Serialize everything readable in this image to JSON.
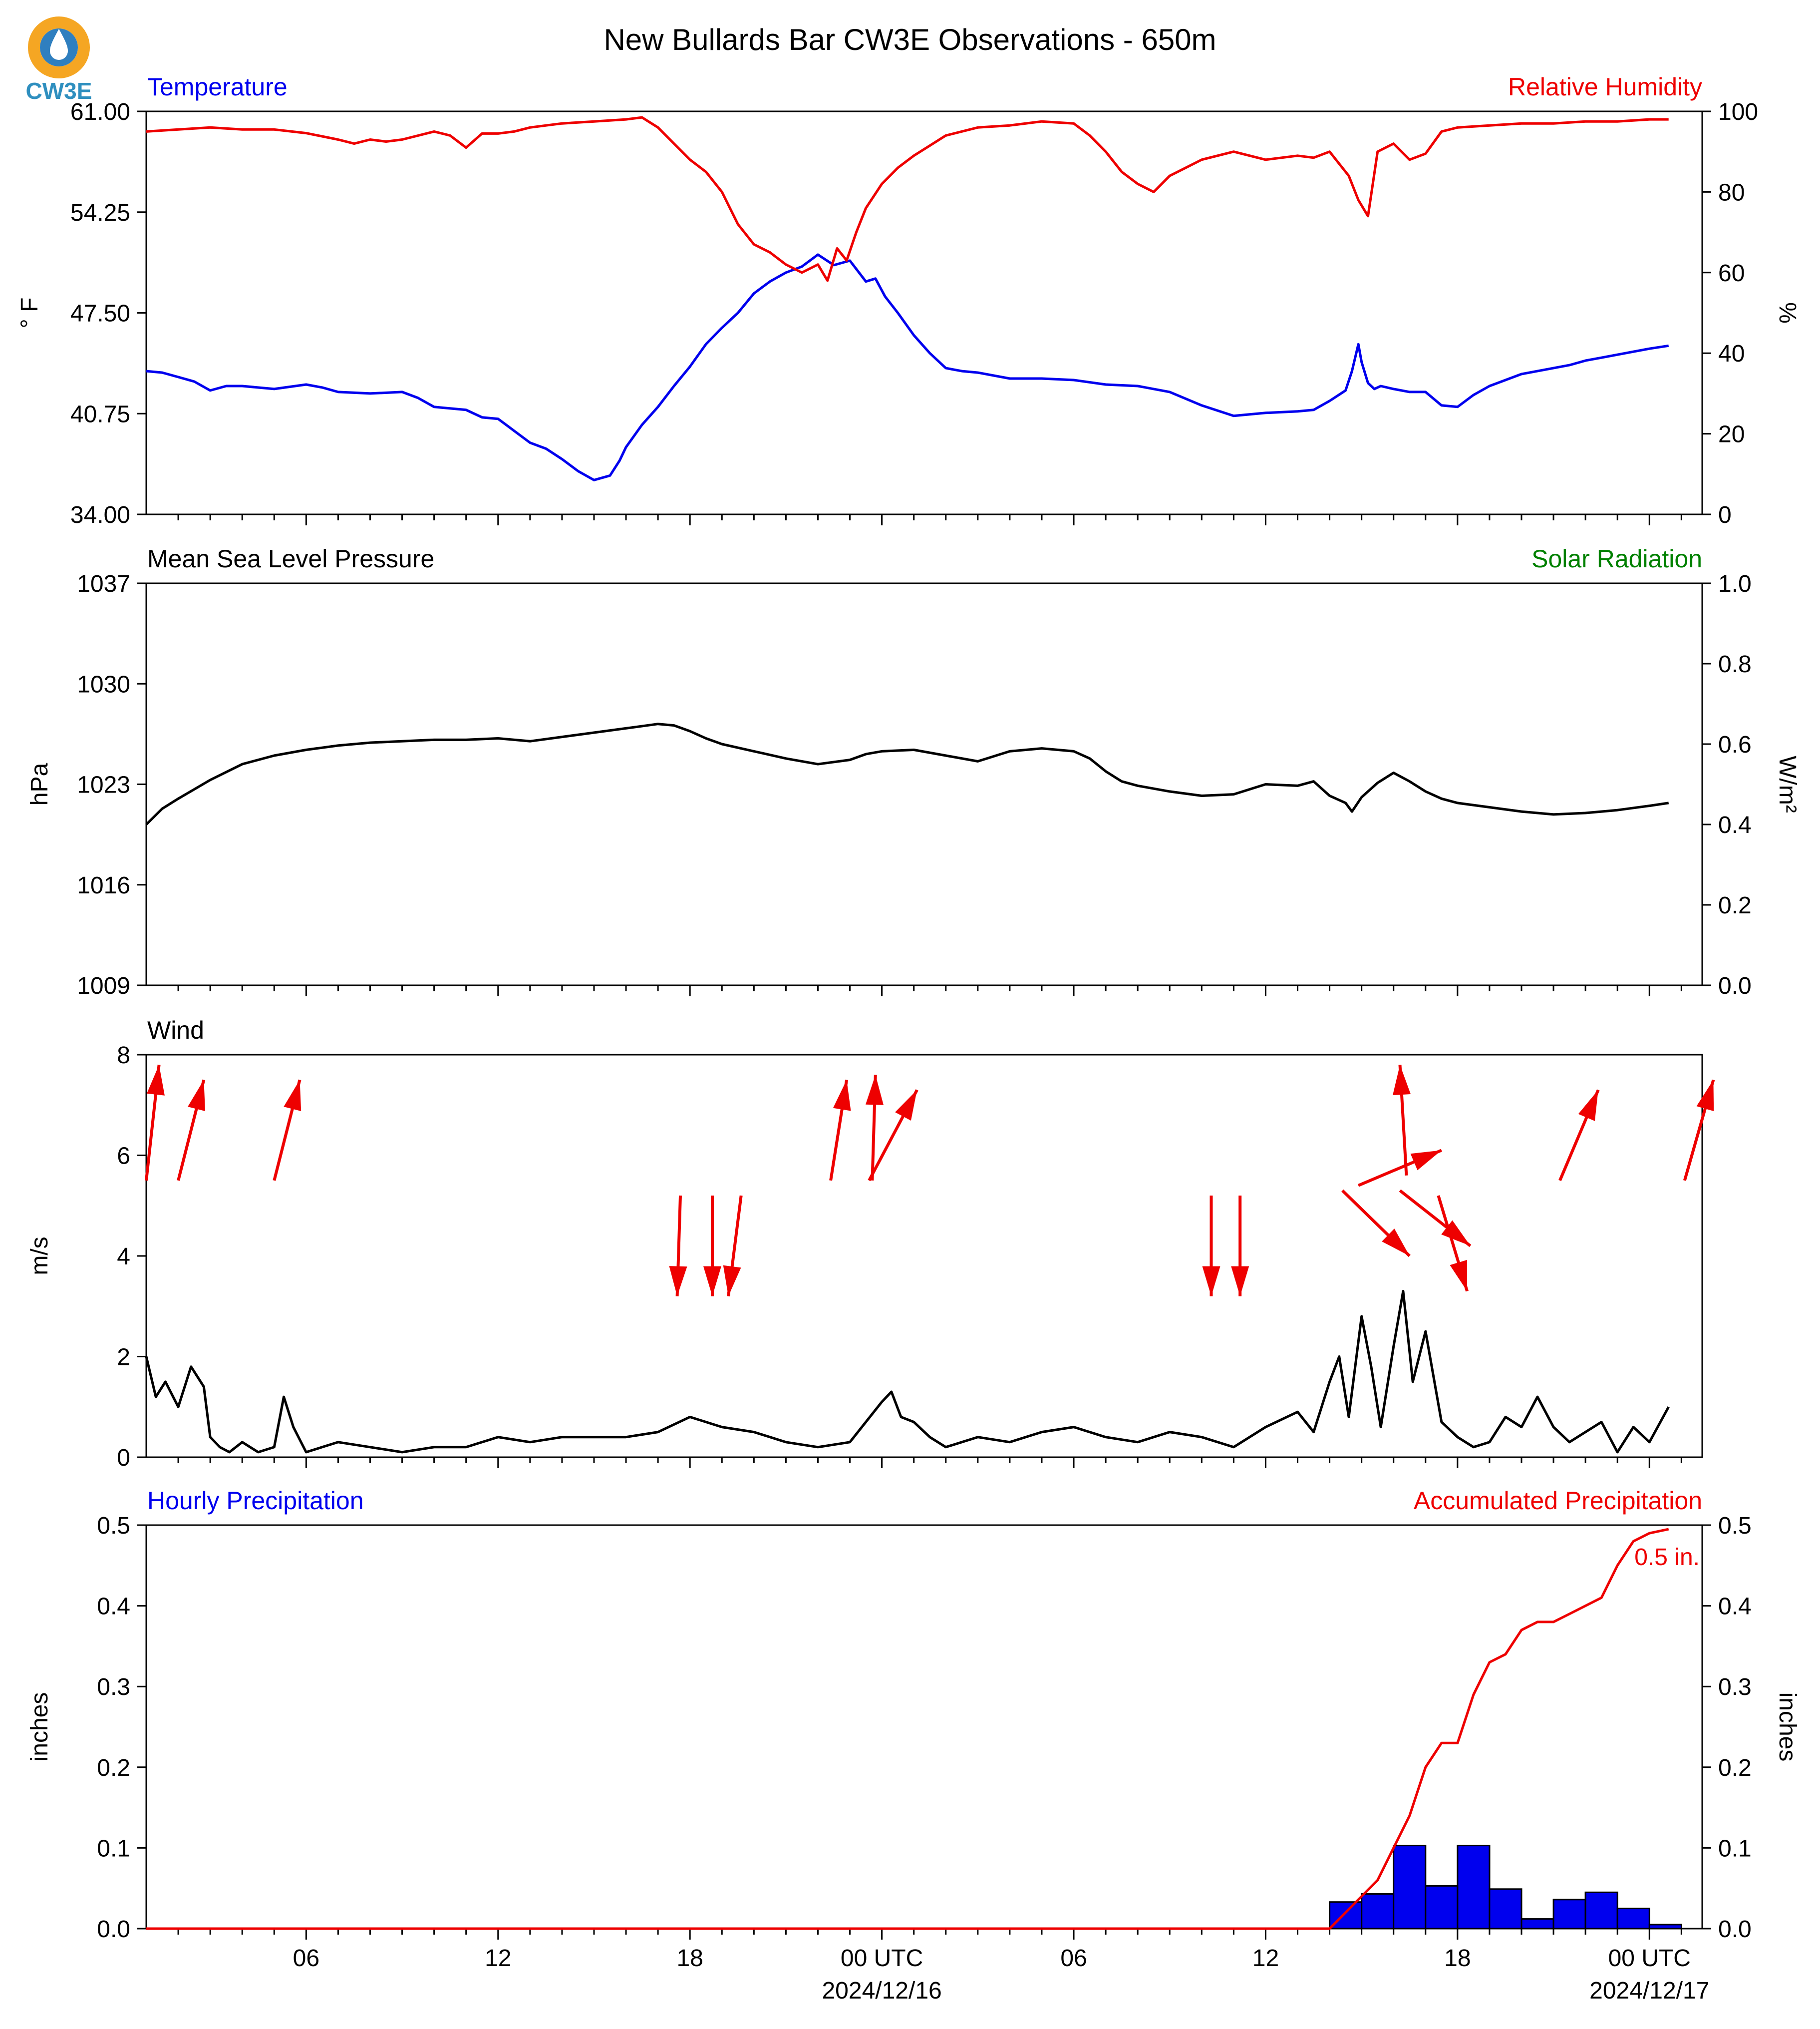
{
  "title": "New Bullards Bar CW3E Observations - 650m",
  "logo": {
    "text": "CW3E",
    "colors": {
      "ring": "#f5a623",
      "drop": "#2f7fbf",
      "text": "#2f8fbf"
    }
  },
  "colors": {
    "blue": "#0000ee",
    "red": "#ee0000",
    "green": "#008000",
    "black": "#000000"
  },
  "chart_data": [
    {
      "type": "line",
      "title_left": "Temperature",
      "title_right": "Relative Humidity",
      "ylabel_left": "° F",
      "ylabel_right": "%",
      "ylim_left": [
        34,
        61
      ],
      "ylim_right": [
        0,
        100
      ],
      "yticks_left": [
        "61.00",
        "54.25",
        "47.50",
        "40.75",
        "34.00"
      ],
      "yticks_right": [
        "100",
        "80",
        "60",
        "40",
        "20",
        "0"
      ],
      "x_hours_range": [
        1,
        48.6
      ],
      "series": [
        {
          "name": "Temperature",
          "axis": "left",
          "color": "#0000ee",
          "x": [
            1,
            1.5,
            2,
            2.5,
            3,
            3.5,
            4,
            5,
            6,
            6.5,
            7,
            8,
            9,
            9.5,
            10,
            11,
            11.5,
            12,
            12.5,
            13,
            13.5,
            14,
            14.5,
            15,
            15.5,
            15.8,
            16,
            16.5,
            17,
            17.5,
            18,
            18.5,
            19,
            19.5,
            20,
            20.5,
            21,
            21.5,
            22,
            22.5,
            23,
            23.5,
            23.8,
            24.1,
            24.5,
            25,
            25.5,
            26,
            26.5,
            27,
            28,
            29,
            30,
            31,
            32,
            33,
            34,
            35,
            36,
            37,
            37.5,
            38,
            38.5,
            38.7,
            38.9,
            39,
            39.2,
            39.4,
            39.6,
            40,
            40.5,
            41,
            41.5,
            42,
            42.5,
            43,
            43.5,
            44,
            44.5,
            45,
            45.5,
            46,
            46.5,
            47,
            47.5,
            48,
            48.6
          ],
          "y": [
            43.6,
            43.5,
            43.2,
            42.9,
            42.3,
            42.6,
            42.6,
            42.4,
            42.7,
            42.5,
            42.2,
            42.1,
            42.2,
            41.8,
            41.2,
            41,
            40.5,
            40.4,
            39.6,
            38.8,
            38.4,
            37.7,
            36.9,
            36.3,
            36.6,
            37.6,
            38.5,
            40,
            41.2,
            42.6,
            43.9,
            45.4,
            46.5,
            47.5,
            48.8,
            49.6,
            50.2,
            50.6,
            51.4,
            50.7,
            51,
            49.6,
            49.8,
            48.6,
            47.5,
            46,
            44.8,
            43.8,
            43.6,
            43.5,
            43.1,
            43.1,
            43,
            42.7,
            42.6,
            42.2,
            41.3,
            40.6,
            40.8,
            40.9,
            41,
            41.6,
            42.3,
            43.6,
            45.4,
            44.2,
            42.8,
            42.4,
            42.6,
            42.4,
            42.2,
            42.2,
            41.3,
            41.2,
            42,
            42.6,
            43,
            43.4,
            43.6,
            43.8,
            44,
            44.3,
            44.5,
            44.7,
            44.9,
            45.1,
            45.3
          ]
        },
        {
          "name": "Relative Humidity",
          "axis": "right",
          "color": "#ee0000",
          "x": [
            1,
            2,
            3,
            4,
            5,
            6,
            7,
            7.5,
            8,
            8.5,
            9,
            10,
            10.5,
            11,
            11.5,
            12,
            12.5,
            13,
            13.5,
            14,
            15,
            16,
            16.5,
            17,
            17.5,
            18,
            18.5,
            19,
            19.5,
            20,
            20.5,
            21,
            21.5,
            22,
            22.3,
            22.6,
            22.9,
            23.2,
            23.5,
            24,
            24.5,
            25,
            25.5,
            26,
            27,
            28,
            29,
            30,
            30.5,
            31,
            31.5,
            32,
            32.5,
            33,
            33.5,
            34,
            35,
            36,
            37,
            37.5,
            38,
            38.3,
            38.6,
            38.9,
            39.2,
            39.5,
            40,
            40.5,
            41,
            41.5,
            42,
            43,
            44,
            45,
            46,
            47,
            48,
            48.6
          ],
          "y": [
            95,
            95.5,
            96,
            95.5,
            95.5,
            94.6,
            93,
            92,
            93,
            92.5,
            93,
            95,
            94,
            91,
            94.5,
            94.5,
            95,
            96,
            96.5,
            97,
            97.5,
            98,
            98.5,
            96,
            92,
            88,
            85,
            80,
            72,
            67,
            65,
            62,
            60,
            62,
            58,
            66,
            63,
            70,
            76,
            82,
            86,
            89,
            91.5,
            94,
            96,
            96.5,
            97.5,
            97,
            94,
            90,
            85,
            82,
            80,
            84,
            86,
            88,
            90,
            88,
            89,
            88.5,
            90,
            87,
            84,
            78,
            74,
            90,
            92,
            88,
            89.5,
            95,
            96,
            96.5,
            97,
            97,
            97.5,
            97.5,
            98,
            98
          ]
        }
      ]
    },
    {
      "type": "line",
      "title_left": "Mean Sea Level Pressure",
      "title_right": "Solar Radiation",
      "ylabel_left": "hPa",
      "ylabel_right": "W/m²",
      "ylim_left": [
        1009,
        1037
      ],
      "ylim_right": [
        0,
        1
      ],
      "yticks_left": [
        "1037",
        "1030",
        "1023",
        "1016",
        "1009"
      ],
      "yticks_right": [
        "1.0",
        "0.8",
        "0.6",
        "0.4",
        "0.2",
        "0.0"
      ],
      "series": [
        {
          "name": "Mean Sea Level Pressure",
          "axis": "left",
          "color": "#000000",
          "x": [
            1,
            1.5,
            2,
            3,
            4,
            5,
            6,
            7,
            8,
            9,
            10,
            11,
            12,
            13,
            14,
            15,
            16,
            17,
            17.5,
            18,
            18.5,
            19,
            20,
            21,
            22,
            23,
            23.5,
            24,
            25,
            26,
            27,
            28,
            29,
            30,
            30.5,
            31,
            31.5,
            32,
            33,
            34,
            35,
            36,
            37,
            37.5,
            38,
            38.5,
            38.7,
            39,
            39.5,
            40,
            40.5,
            41,
            41.5,
            42,
            43,
            44,
            45,
            46,
            47,
            48,
            48.6
          ],
          "y": [
            1020.2,
            1021.3,
            1022,
            1023.3,
            1024.4,
            1025,
            1025.4,
            1025.7,
            1025.9,
            1026,
            1026.1,
            1026.1,
            1026.2,
            1026,
            1026.3,
            1026.6,
            1026.9,
            1027.2,
            1027.1,
            1026.7,
            1026.2,
            1025.8,
            1025.3,
            1024.8,
            1024.4,
            1024.7,
            1025.1,
            1025.3,
            1025.4,
            1025,
            1024.6,
            1025.3,
            1025.5,
            1025.3,
            1024.8,
            1023.9,
            1023.2,
            1022.9,
            1022.5,
            1022.2,
            1022.3,
            1023,
            1022.9,
            1023.2,
            1022.2,
            1021.7,
            1021.1,
            1022.1,
            1023.1,
            1023.8,
            1023.2,
            1022.5,
            1022,
            1021.7,
            1021.4,
            1021.1,
            1020.9,
            1021,
            1021.2,
            1021.5,
            1021.7
          ]
        }
      ]
    },
    {
      "type": "line",
      "title_left": "Wind",
      "ylabel_left": "m/s",
      "ylim_left": [
        0,
        8
      ],
      "yticks_left": [
        "8",
        "6",
        "4",
        "2",
        "0"
      ],
      "series": [
        {
          "name": "Wind Speed",
          "axis": "left",
          "color": "#000000",
          "x": [
            1,
            1.3,
            1.6,
            2,
            2.4,
            2.8,
            3,
            3.3,
            3.6,
            4,
            4.5,
            5,
            5.3,
            5.6,
            6,
            6.5,
            7,
            8,
            9,
            10,
            11,
            12,
            13,
            14,
            15,
            16,
            17,
            18,
            19,
            20,
            21,
            22,
            23,
            24,
            24.3,
            24.6,
            25,
            25.5,
            26,
            27,
            28,
            29,
            30,
            31,
            32,
            33,
            34,
            35,
            36,
            37,
            37.5,
            38,
            38.3,
            38.6,
            39,
            39.3,
            39.6,
            40,
            40.3,
            40.6,
            41,
            41.5,
            42,
            42.5,
            43,
            43.5,
            44,
            44.5,
            45,
            45.5,
            46,
            46.5,
            47,
            47.5,
            48,
            48.6
          ],
          "y": [
            2,
            1.2,
            1.5,
            1.0,
            1.8,
            1.4,
            0.4,
            0.2,
            0.1,
            0.3,
            0.1,
            0.2,
            1.2,
            0.6,
            0.1,
            0.2,
            0.3,
            0.2,
            0.1,
            0.2,
            0.2,
            0.4,
            0.3,
            0.4,
            0.4,
            0.4,
            0.5,
            0.8,
            0.6,
            0.5,
            0.3,
            0.2,
            0.3,
            1.1,
            1.3,
            0.8,
            0.7,
            0.4,
            0.2,
            0.4,
            0.3,
            0.5,
            0.6,
            0.4,
            0.3,
            0.5,
            0.4,
            0.2,
            0.6,
            0.9,
            0.5,
            1.5,
            2.0,
            0.8,
            2.8,
            1.8,
            0.6,
            2.2,
            3.3,
            1.5,
            2.5,
            0.7,
            0.4,
            0.2,
            0.3,
            0.8,
            0.6,
            1.2,
            0.6,
            0.3,
            0.5,
            0.7,
            0.1,
            0.6,
            0.3,
            1.0
          ]
        }
      ],
      "wind_arrows": [
        {
          "x": 1,
          "y0": 5.5,
          "dx": 0.4,
          "dy": 2.3
        },
        {
          "x": 2,
          "y0": 5.5,
          "dx": 0.8,
          "dy": 2.0
        },
        {
          "x": 5,
          "y0": 5.5,
          "dx": 0.8,
          "dy": 2.0
        },
        {
          "x": 17.7,
          "y0": 5.2,
          "dx": -0.1,
          "dy": -2.0
        },
        {
          "x": 18.7,
          "y0": 5.2,
          "dx": 0.0,
          "dy": -2.0
        },
        {
          "x": 19.6,
          "y0": 5.2,
          "dx": -0.4,
          "dy": -2.0
        },
        {
          "x": 22.4,
          "y0": 5.5,
          "dx": 0.5,
          "dy": 2.0
        },
        {
          "x": 23.6,
          "y0": 5.5,
          "dx": 1.5,
          "dy": 1.8
        },
        {
          "x": 23.7,
          "y0": 5.5,
          "dx": 0.1,
          "dy": 2.1
        },
        {
          "x": 34.3,
          "y0": 5.2,
          "dx": 0.0,
          "dy": -2.0
        },
        {
          "x": 35.2,
          "y0": 5.2,
          "dx": 0.0,
          "dy": -2.0
        },
        {
          "x": 38.4,
          "y0": 5.3,
          "dx": 2.1,
          "dy": -1.3
        },
        {
          "x": 38.9,
          "y0": 5.4,
          "dx": 2.6,
          "dy": 0.7
        },
        {
          "x": 40.2,
          "y0": 5.3,
          "dx": 2.2,
          "dy": -1.1
        },
        {
          "x": 40.4,
          "y0": 5.6,
          "dx": -0.2,
          "dy": 2.2
        },
        {
          "x": 41.4,
          "y0": 5.2,
          "dx": 0.9,
          "dy": -1.9
        },
        {
          "x": 45.2,
          "y0": 5.5,
          "dx": 1.2,
          "dy": 1.8
        },
        {
          "x": 49.1,
          "y0": 5.5,
          "dx": 0.9,
          "dy": 2.0
        }
      ]
    },
    {
      "type": "bar",
      "title_left": "Hourly Precipitation",
      "title_right": "Accumulated Precipitation",
      "ylabel_left": "inches",
      "ylabel_right": "inches",
      "ylim_left": [
        0,
        0.5
      ],
      "ylim_right": [
        0,
        0.5
      ],
      "yticks_left": [
        "0.5",
        "0.4",
        "0.3",
        "0.2",
        "0.1",
        "0.0"
      ],
      "yticks_right": [
        "0.5",
        "0.4",
        "0.3",
        "0.2",
        "0.1",
        "0.0"
      ],
      "annotation": "0.5 in.",
      "bars": {
        "name": "Hourly Precipitation",
        "color": "#0000ee",
        "x_start": [
          38,
          39,
          40,
          41,
          42,
          43,
          44,
          45,
          46,
          47,
          48
        ],
        "values": [
          0.033,
          0.043,
          0.103,
          0.053,
          0.103,
          0.049,
          0.012,
          0.036,
          0.045,
          0.025,
          0.005
        ]
      },
      "series": [
        {
          "name": "Accumulated Precipitation",
          "axis": "right",
          "color": "#ee0000",
          "x": [
            1,
            38,
            38.5,
            39,
            39.5,
            40,
            40.5,
            41,
            41.5,
            42,
            42.5,
            43,
            43.5,
            44,
            44.5,
            45,
            45.5,
            46,
            46.5,
            47,
            47.5,
            48,
            48.6
          ],
          "y": [
            0,
            0,
            0.02,
            0.04,
            0.06,
            0.1,
            0.14,
            0.2,
            0.23,
            0.23,
            0.29,
            0.33,
            0.34,
            0.37,
            0.38,
            0.38,
            0.39,
            0.4,
            0.41,
            0.45,
            0.48,
            0.49,
            0.495
          ]
        }
      ]
    }
  ],
  "x_axis": {
    "tick_hours": [
      6,
      12,
      18,
      24,
      30,
      36,
      42,
      48
    ],
    "tick_labels": [
      "06",
      "12",
      "18",
      "00 UTC",
      "06",
      "12",
      "18",
      "00 UTC"
    ],
    "date_labels": [
      {
        "hour": 24,
        "text": "2024/12/16"
      },
      {
        "hour": 48,
        "text": "2024/12/17"
      }
    ]
  }
}
